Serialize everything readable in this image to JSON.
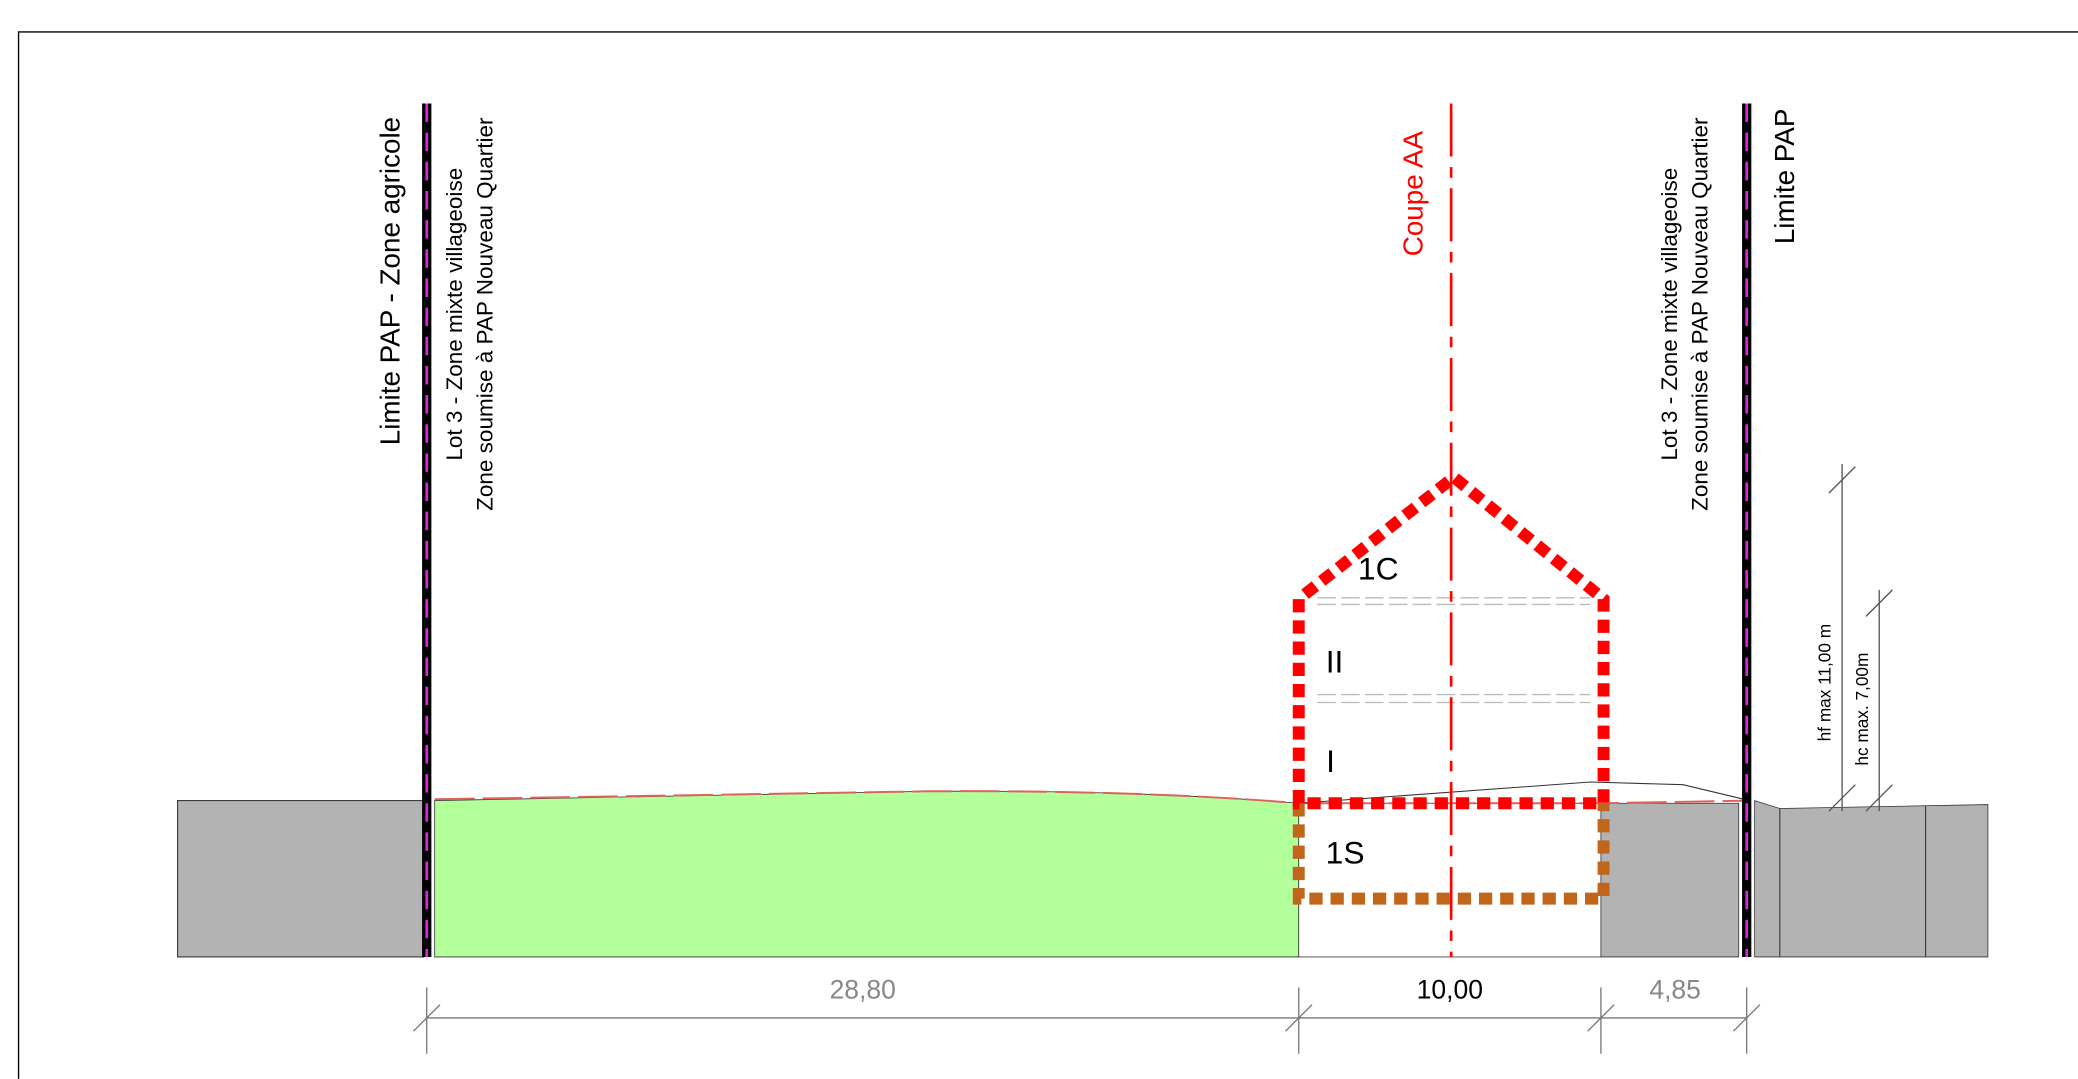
{
  "labels": {
    "left_limit": "Limite PAP - Zone agricole",
    "left_lot_line1": "Lot 3 - Zone mixte villageoise",
    "left_lot_line2": "Zone soumise à PAP Nouveau Quartier",
    "section": "Coupe AA",
    "right_lot_line1": "Lot 3 - Zone mixte villageoise",
    "right_lot_line2": "Zone soumise à PAP Nouveau Quartier",
    "right_limit": "Limite PAP",
    "floors": [
      "1C",
      "II",
      "I",
      "1S"
    ],
    "hf": "hf max 11,00 m",
    "hc": "hc max. 7,00m",
    "dimensions": [
      "28,80",
      "10,00",
      "4,85"
    ]
  }
}
